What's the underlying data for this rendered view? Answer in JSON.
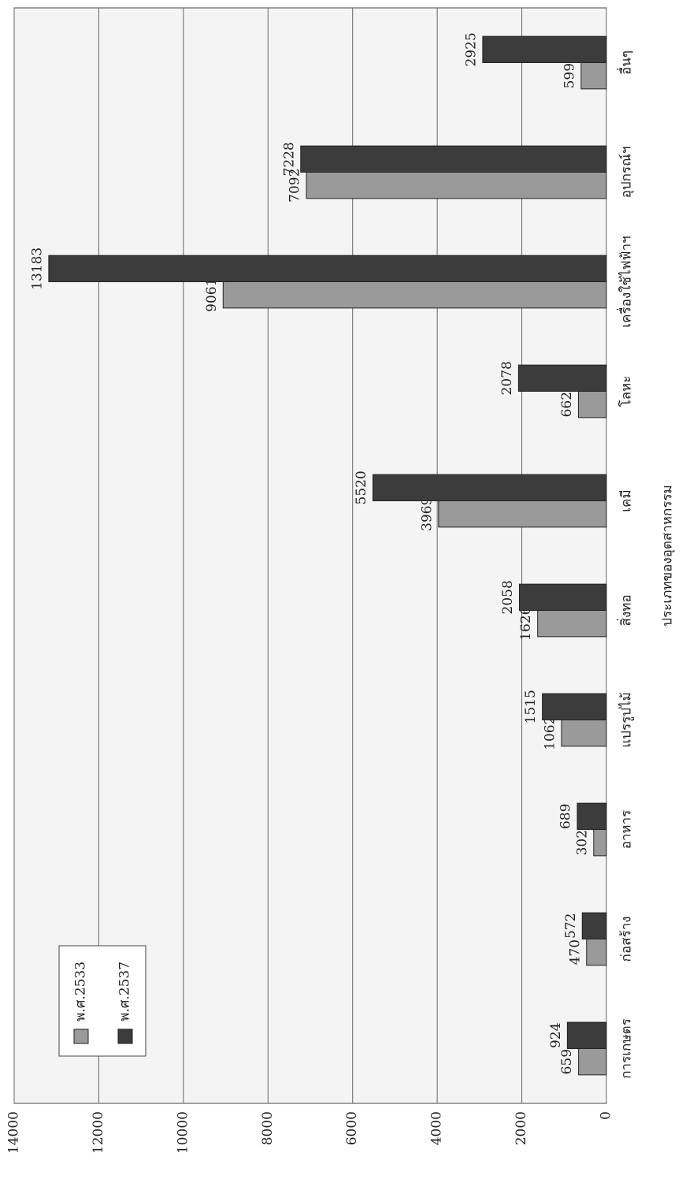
{
  "chart_data": {
    "type": "bar",
    "x_label": "ประเภทของอุตสาหกรรม",
    "categories": [
      "การเกษตร",
      "ก่อสร้าง",
      "อาหาร",
      "แปรรูปไม้",
      "สิ่งทอ",
      "เคมี",
      "โลหะ",
      "เครื่องใช้ไฟฟ้าฯ",
      "อุปกรณ์ฯ",
      "อื่นๆ"
    ],
    "series": [
      {
        "name": "พ.ศ.2533",
        "color": "#9a9a9a",
        "values": [
          659,
          470,
          302,
          1062,
          1626,
          3969,
          662,
          9061,
          7092,
          599
        ]
      },
      {
        "name": "พ.ศ.2537",
        "color": "#3c3c3c",
        "values": [
          924,
          572,
          689,
          1515,
          2058,
          5520,
          2078,
          13183,
          7228,
          2925
        ]
      }
    ],
    "ylim": [
      0,
      14000
    ],
    "yticks": [
      0,
      2000,
      4000,
      6000,
      8000,
      10000,
      12000,
      14000
    ],
    "grid": true,
    "legend": "upper left",
    "rotation": -90
  }
}
